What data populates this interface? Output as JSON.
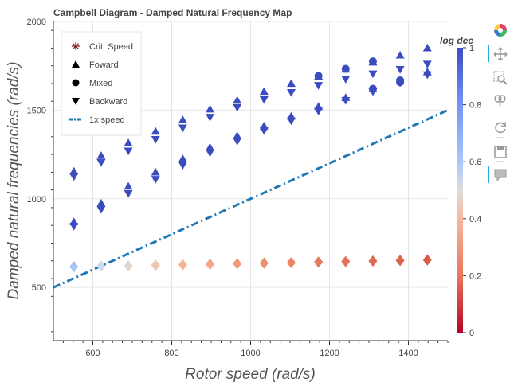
{
  "chart_data": {
    "type": "scatter",
    "title": "Campbell Diagram - Damped Natural Frequency Map",
    "xlabel": "Rotor speed (rad/s)",
    "ylabel": "Damped natural frequencies (rad/s)",
    "xlim": [
      500,
      1500
    ],
    "ylim": [
      200,
      2000
    ],
    "xticks": [
      600,
      800,
      1000,
      1200,
      1400
    ],
    "yticks": [
      500,
      1000,
      1500,
      2000
    ],
    "grid": true,
    "legend_position": "top-left",
    "legend": [
      {
        "label": "Crit. Speed",
        "marker": "asterisk",
        "color": "#8b1a1a"
      },
      {
        "label": "Foward",
        "marker": "triangle-up",
        "color": "#000000"
      },
      {
        "label": "Mixed",
        "marker": "circle",
        "color": "#000000"
      },
      {
        "label": "Backward",
        "marker": "triangle-down",
        "color": "#000000"
      },
      {
        "label": "1x speed",
        "marker": "dashdot-line",
        "color": "#1f77b4"
      }
    ],
    "reference_line": {
      "name": "1x speed",
      "x": [
        500,
        1500
      ],
      "y": [
        500,
        1500
      ],
      "color": "#1f77b4"
    },
    "x": [
      552,
      621,
      690,
      759,
      828,
      897,
      966,
      1034,
      1103,
      1172,
      1241,
      1310,
      1379,
      1448
    ],
    "series": [
      {
        "mode": "Foward",
        "marker": "triangle-up",
        "log_dec": 1.0,
        "values": [
          1155,
          1243,
          1315,
          1380,
          1445,
          1505,
          1555,
          1605,
          1650,
          1690,
          1730,
          1770,
          1810,
          1850
        ]
      },
      {
        "mode": "Backward",
        "marker": "triangle-down",
        "log_dec": 1.0,
        "values": [
          1125,
          1205,
          1270,
          1335,
          1400,
          1460,
          1515,
          1560,
          1600,
          1640,
          1675,
          1705,
          1730,
          1760
        ]
      },
      {
        "mode": "Foward",
        "marker": "triangle-up",
        "log_dec": 1.0,
        "values": [
          870,
          975,
          1070,
          1150,
          1225,
          1290,
          1355,
          1410,
          1465,
          1520,
          1570,
          1620,
          1665,
          1715
        ]
      },
      {
        "mode": "Backward",
        "marker": "triangle-down",
        "log_dec": 1.0,
        "values": [
          845,
          940,
          1030,
          1110,
          1190,
          1260,
          1325,
          1385,
          1440,
          1495,
          1555,
          1605,
          1655,
          1700
        ]
      },
      {
        "mode": "Mixed",
        "marker": "circle",
        "log_dec": 1.0,
        "x": [
          1172,
          1241,
          1310,
          1310,
          1379,
          1379
        ],
        "values": [
          1693,
          1733,
          1775,
          1620,
          1668,
          1658
        ]
      },
      {
        "mode": "Foward",
        "marker": "diamond",
        "log_dec_range": [
          0.52,
          0.25
        ],
        "values": [
          617,
          620,
          622,
          625,
          628,
          631,
          634,
          637,
          640,
          643,
          646,
          649,
          652,
          655
        ],
        "colors": [
          "#a6c4f4",
          "#cfd9ea",
          "#e1d6cc",
          "#f0c6ad",
          "#f4b596",
          "#f3a585",
          "#f29a78",
          "#ef8f6d",
          "#ec8565",
          "#e87a5d",
          "#e47157",
          "#e06a52",
          "#dc634e",
          "#d85c4a"
        ]
      }
    ],
    "colorbar": {
      "title": "log dec",
      "range": [
        0,
        1
      ],
      "ticks": [
        0,
        0.2,
        0.4,
        0.6,
        0.8,
        1
      ],
      "colormap": "coolwarm_r"
    }
  },
  "toolbar": {
    "items": [
      "bokeh-logo",
      "pan",
      "box-zoom",
      "wheel-zoom",
      "reset",
      "save",
      "hover"
    ]
  }
}
